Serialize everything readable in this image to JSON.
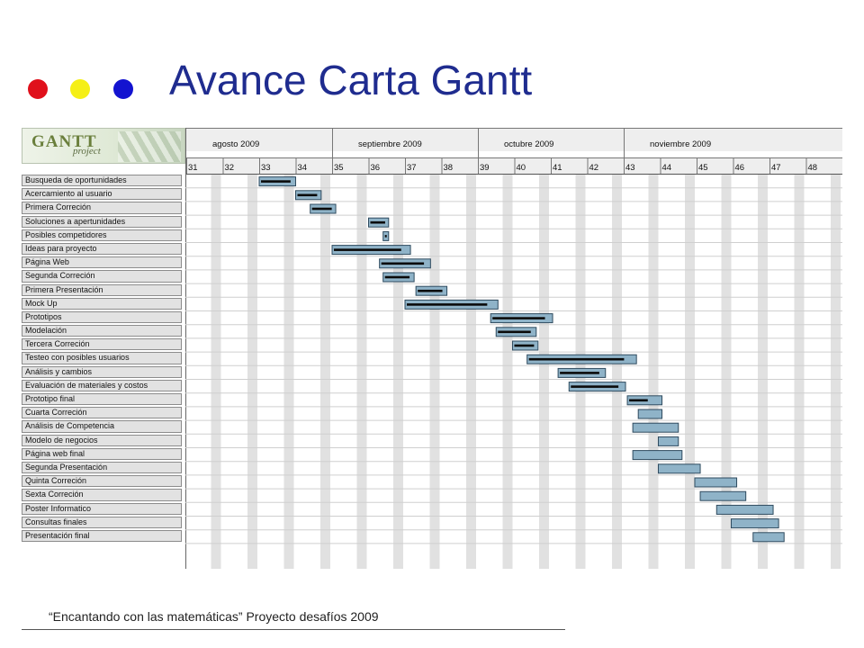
{
  "title": "Avance Carta Gantt",
  "dots": [
    "#e0101b",
    "#f5ef16",
    "#1313d0"
  ],
  "logo": {
    "word": "GANTT",
    "sub": "project"
  },
  "months": [
    {
      "label": "agosto 2009",
      "startWeek": 31,
      "endWeek": 35
    },
    {
      "label": "septiembre 2009",
      "startWeek": 35,
      "endWeek": 39
    },
    {
      "label": "octubre 2009",
      "startWeek": 39,
      "endWeek": 43
    },
    {
      "label": "noviembre 2009",
      "startWeek": 43,
      "endWeek": 48
    }
  ],
  "weeks": [
    "31",
    "32",
    "33",
    "34",
    "35",
    "36",
    "37",
    "38",
    "39",
    "40",
    "41",
    "42",
    "43",
    "44",
    "45",
    "46",
    "47",
    "48"
  ],
  "tasks": [
    {
      "name": "Busqueda de oportunidades",
      "start": 33.0,
      "end": 34.0,
      "progress": 0.9
    },
    {
      "name": "Acercamiento al usuario",
      "start": 34.0,
      "end": 34.7,
      "progress": 0.9
    },
    {
      "name": "Primera Correción",
      "start": 34.4,
      "end": 35.1,
      "progress": 0.9
    },
    {
      "name": "Soluciones a apertunidades",
      "start": 36.0,
      "end": 36.55,
      "progress": 0.9
    },
    {
      "name": "Posibles competidores",
      "start": 36.4,
      "end": 36.55,
      "progress": 0.9
    },
    {
      "name": "Ideas para proyecto",
      "start": 35.0,
      "end": 37.15,
      "progress": 0.9
    },
    {
      "name": "Página Web",
      "start": 36.3,
      "end": 37.7,
      "progress": 0.9
    },
    {
      "name": "Segunda Correción",
      "start": 36.4,
      "end": 37.25,
      "progress": 0.9
    },
    {
      "name": "Primera Presentación",
      "start": 37.3,
      "end": 38.15,
      "progress": 0.9
    },
    {
      "name": "Mock Up",
      "start": 37.0,
      "end": 39.55,
      "progress": 0.9
    },
    {
      "name": "Prototipos",
      "start": 39.35,
      "end": 41.05,
      "progress": 0.9
    },
    {
      "name": "Modelación",
      "start": 39.5,
      "end": 40.6,
      "progress": 0.9
    },
    {
      "name": "Tercera Correción",
      "start": 39.95,
      "end": 40.65,
      "progress": 0.9
    },
    {
      "name": "Testeo con posibles usuarios",
      "start": 40.35,
      "end": 43.35,
      "progress": 0.9
    },
    {
      "name": "Análisis y cambios",
      "start": 41.2,
      "end": 42.5,
      "progress": 0.9
    },
    {
      "name": "Evaluación de materiales y costos",
      "start": 41.5,
      "end": 43.05,
      "progress": 0.9
    },
    {
      "name": "Prototipo final",
      "start": 43.1,
      "end": 44.05,
      "progress": 0.6
    },
    {
      "name": "Cuarta Correción",
      "start": 43.4,
      "end": 44.05,
      "progress": 0.0
    },
    {
      "name": "Análisis de Competencia",
      "start": 43.25,
      "end": 44.5,
      "progress": 0.0
    },
    {
      "name": "Modelo de negocios",
      "start": 43.95,
      "end": 44.5,
      "progress": 0.0
    },
    {
      "name": "Página web final",
      "start": 43.25,
      "end": 44.6,
      "progress": 0.0
    },
    {
      "name": "Segunda Presentación",
      "start": 43.95,
      "end": 45.1,
      "progress": 0.0
    },
    {
      "name": "Quinta Correción",
      "start": 44.95,
      "end": 46.1,
      "progress": 0.0
    },
    {
      "name": "Sexta Correción",
      "start": 45.1,
      "end": 46.35,
      "progress": 0.0
    },
    {
      "name": "Poster Informatico",
      "start": 45.55,
      "end": 47.1,
      "progress": 0.0
    },
    {
      "name": "Consultas finales",
      "start": 45.95,
      "end": 47.25,
      "progress": 0.0
    },
    {
      "name": "Presentación final",
      "start": 46.55,
      "end": 47.4,
      "progress": 0.0
    }
  ],
  "colors": {
    "bar": "#8fb3c8",
    "barBorder": "#2e4a5e",
    "progress": "#0a0a0a",
    "weekend": "#e1e1e1",
    "header": "#eeeeee"
  },
  "footer": "“Encantando con las matemáticas” Proyecto desafíos 2009"
}
